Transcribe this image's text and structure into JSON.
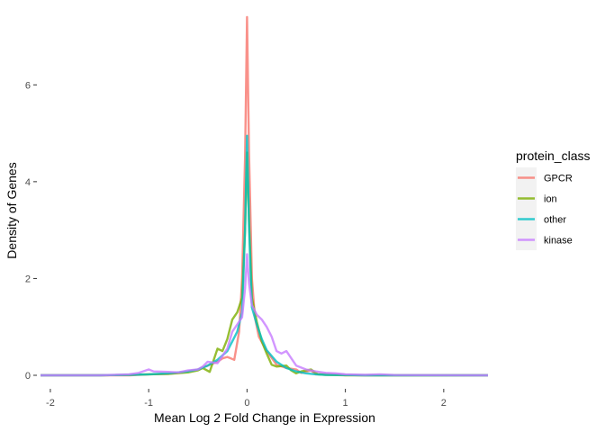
{
  "chart_data": {
    "type": "line",
    "title": "",
    "xlabel": "Mean Log 2 Fold Change in Expression",
    "ylabel": "Density of Genes",
    "xlim": [
      -2.1,
      2.45
    ],
    "ylim": [
      0,
      7.4
    ],
    "xticks": [
      -2,
      -1,
      0,
      1,
      2
    ],
    "yticks": [
      0,
      2,
      4,
      6
    ],
    "grid": false,
    "legend": {
      "title": "protein_class",
      "position": "right"
    },
    "series": [
      {
        "name": "GPCR",
        "color": "#F8766D",
        "points": [
          [
            -2.1,
            0
          ],
          [
            -1.5,
            0
          ],
          [
            -1.2,
            0
          ],
          [
            -1.0,
            0.02
          ],
          [
            -0.8,
            0.03
          ],
          [
            -0.7,
            0.05
          ],
          [
            -0.6,
            0.08
          ],
          [
            -0.5,
            0.12
          ],
          [
            -0.4,
            0.2
          ],
          [
            -0.3,
            0.28
          ],
          [
            -0.25,
            0.35
          ],
          [
            -0.2,
            0.38
          ],
          [
            -0.13,
            0.32
          ],
          [
            -0.08,
            0.9
          ],
          [
            -0.05,
            2.0
          ],
          [
            -0.02,
            4.5
          ],
          [
            0,
            7.4
          ],
          [
            0.02,
            4.6
          ],
          [
            0.05,
            2.0
          ],
          [
            0.08,
            1.2
          ],
          [
            0.12,
            0.8
          ],
          [
            0.2,
            0.5
          ],
          [
            0.3,
            0.22
          ],
          [
            0.4,
            0.15
          ],
          [
            0.5,
            0.12
          ],
          [
            0.55,
            0.05
          ],
          [
            0.65,
            0.1
          ],
          [
            0.7,
            0.02
          ],
          [
            0.8,
            0.03
          ],
          [
            0.9,
            0.02
          ],
          [
            1.0,
            0.01
          ],
          [
            1.2,
            0
          ],
          [
            1.5,
            0
          ],
          [
            2.45,
            0
          ]
        ]
      },
      {
        "name": "ion",
        "color": "#7CAE00",
        "points": [
          [
            -2.1,
            0
          ],
          [
            -1.5,
            0
          ],
          [
            -1.2,
            0.01
          ],
          [
            -1.0,
            0.02
          ],
          [
            -0.8,
            0.03
          ],
          [
            -0.6,
            0.06
          ],
          [
            -0.5,
            0.1
          ],
          [
            -0.45,
            0.15
          ],
          [
            -0.38,
            0.07
          ],
          [
            -0.3,
            0.55
          ],
          [
            -0.25,
            0.5
          ],
          [
            -0.2,
            0.75
          ],
          [
            -0.15,
            1.15
          ],
          [
            -0.1,
            1.3
          ],
          [
            -0.05,
            1.6
          ],
          [
            -0.02,
            3.0
          ],
          [
            0,
            4.6
          ],
          [
            0.02,
            3.2
          ],
          [
            0.05,
            1.6
          ],
          [
            0.1,
            1.1
          ],
          [
            0.15,
            0.7
          ],
          [
            0.2,
            0.45
          ],
          [
            0.25,
            0.22
          ],
          [
            0.3,
            0.18
          ],
          [
            0.4,
            0.2
          ],
          [
            0.45,
            0.1
          ],
          [
            0.5,
            0.04
          ],
          [
            0.55,
            0.08
          ],
          [
            0.65,
            0.12
          ],
          [
            0.72,
            0.02
          ],
          [
            0.8,
            0.01
          ],
          [
            1.0,
            0
          ],
          [
            2.45,
            0
          ]
        ]
      },
      {
        "name": "other",
        "color": "#00BFC4",
        "points": [
          [
            -2.1,
            0
          ],
          [
            -1.5,
            0
          ],
          [
            -1.2,
            0.01
          ],
          [
            -1.0,
            0.02
          ],
          [
            -0.8,
            0.04
          ],
          [
            -0.6,
            0.08
          ],
          [
            -0.5,
            0.12
          ],
          [
            -0.4,
            0.2
          ],
          [
            -0.3,
            0.32
          ],
          [
            -0.2,
            0.5
          ],
          [
            -0.15,
            0.7
          ],
          [
            -0.1,
            0.9
          ],
          [
            -0.05,
            1.3
          ],
          [
            -0.02,
            3.0
          ],
          [
            0,
            4.95
          ],
          [
            0.02,
            3.1
          ],
          [
            0.05,
            1.4
          ],
          [
            0.1,
            1.05
          ],
          [
            0.15,
            0.75
          ],
          [
            0.2,
            0.52
          ],
          [
            0.3,
            0.28
          ],
          [
            0.4,
            0.15
          ],
          [
            0.5,
            0.08
          ],
          [
            0.6,
            0.04
          ],
          [
            0.7,
            0.02
          ],
          [
            0.8,
            0.01
          ],
          [
            1.0,
            0.005
          ],
          [
            1.2,
            0
          ],
          [
            2.45,
            0
          ]
        ]
      },
      {
        "name": "kinase",
        "color": "#C77CFF",
        "points": [
          [
            -2.1,
            0
          ],
          [
            -1.5,
            0
          ],
          [
            -1.2,
            0.02
          ],
          [
            -1.1,
            0.05
          ],
          [
            -1.0,
            0.12
          ],
          [
            -0.95,
            0.08
          ],
          [
            -0.8,
            0.07
          ],
          [
            -0.7,
            0.06
          ],
          [
            -0.6,
            0.1
          ],
          [
            -0.5,
            0.12
          ],
          [
            -0.45,
            0.18
          ],
          [
            -0.4,
            0.28
          ],
          [
            -0.3,
            0.25
          ],
          [
            -0.2,
            0.55
          ],
          [
            -0.15,
            0.9
          ],
          [
            -0.1,
            1.05
          ],
          [
            -0.05,
            1.2
          ],
          [
            -0.02,
            1.8
          ],
          [
            0,
            2.5
          ],
          [
            0.02,
            1.9
          ],
          [
            0.05,
            1.45
          ],
          [
            0.1,
            1.25
          ],
          [
            0.15,
            1.15
          ],
          [
            0.2,
            1.0
          ],
          [
            0.25,
            0.8
          ],
          [
            0.3,
            0.5
          ],
          [
            0.35,
            0.45
          ],
          [
            0.4,
            0.5
          ],
          [
            0.5,
            0.2
          ],
          [
            0.6,
            0.12
          ],
          [
            0.7,
            0.08
          ],
          [
            0.8,
            0.05
          ],
          [
            0.9,
            0.04
          ],
          [
            1.0,
            0.02
          ],
          [
            1.2,
            0.01
          ],
          [
            1.35,
            0.02
          ],
          [
            1.5,
            0.005
          ],
          [
            2.45,
            0
          ]
        ]
      }
    ]
  }
}
